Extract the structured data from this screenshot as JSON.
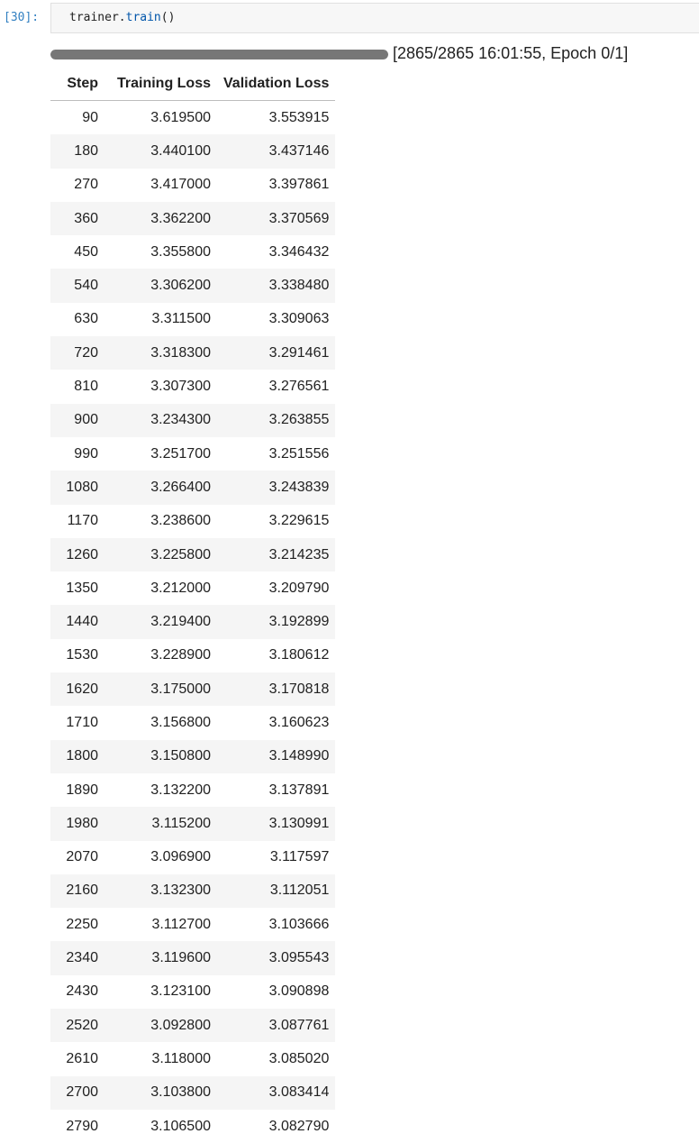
{
  "cell": {
    "prompt": "[30]:",
    "code_object": "trainer",
    "code_dot": ".",
    "code_method": "train",
    "code_call": "()"
  },
  "progress": {
    "fraction": 1.0,
    "text": "[2865/2865 16:01:55, Epoch 0/1]"
  },
  "table": {
    "headers": [
      "Step",
      "Training Loss",
      "Validation Loss"
    ],
    "rows": [
      [
        "90",
        "3.619500",
        "3.553915"
      ],
      [
        "180",
        "3.440100",
        "3.437146"
      ],
      [
        "270",
        "3.417000",
        "3.397861"
      ],
      [
        "360",
        "3.362200",
        "3.370569"
      ],
      [
        "450",
        "3.355800",
        "3.346432"
      ],
      [
        "540",
        "3.306200",
        "3.338480"
      ],
      [
        "630",
        "3.311500",
        "3.309063"
      ],
      [
        "720",
        "3.318300",
        "3.291461"
      ],
      [
        "810",
        "3.307300",
        "3.276561"
      ],
      [
        "900",
        "3.234300",
        "3.263855"
      ],
      [
        "990",
        "3.251700",
        "3.251556"
      ],
      [
        "1080",
        "3.266400",
        "3.243839"
      ],
      [
        "1170",
        "3.238600",
        "3.229615"
      ],
      [
        "1260",
        "3.225800",
        "3.214235"
      ],
      [
        "1350",
        "3.212000",
        "3.209790"
      ],
      [
        "1440",
        "3.219400",
        "3.192899"
      ],
      [
        "1530",
        "3.228900",
        "3.180612"
      ],
      [
        "1620",
        "3.175000",
        "3.170818"
      ],
      [
        "1710",
        "3.156800",
        "3.160623"
      ],
      [
        "1800",
        "3.150800",
        "3.148990"
      ],
      [
        "1890",
        "3.132200",
        "3.137891"
      ],
      [
        "1980",
        "3.115200",
        "3.130991"
      ],
      [
        "2070",
        "3.096900",
        "3.117597"
      ],
      [
        "2160",
        "3.132300",
        "3.112051"
      ],
      [
        "2250",
        "3.112700",
        "3.103666"
      ],
      [
        "2340",
        "3.119600",
        "3.095543"
      ],
      [
        "2430",
        "3.123100",
        "3.090898"
      ],
      [
        "2520",
        "3.092800",
        "3.087761"
      ],
      [
        "2610",
        "3.118000",
        "3.085020"
      ],
      [
        "2700",
        "3.103800",
        "3.083414"
      ],
      [
        "2790",
        "3.106500",
        "3.082790"
      ]
    ]
  }
}
